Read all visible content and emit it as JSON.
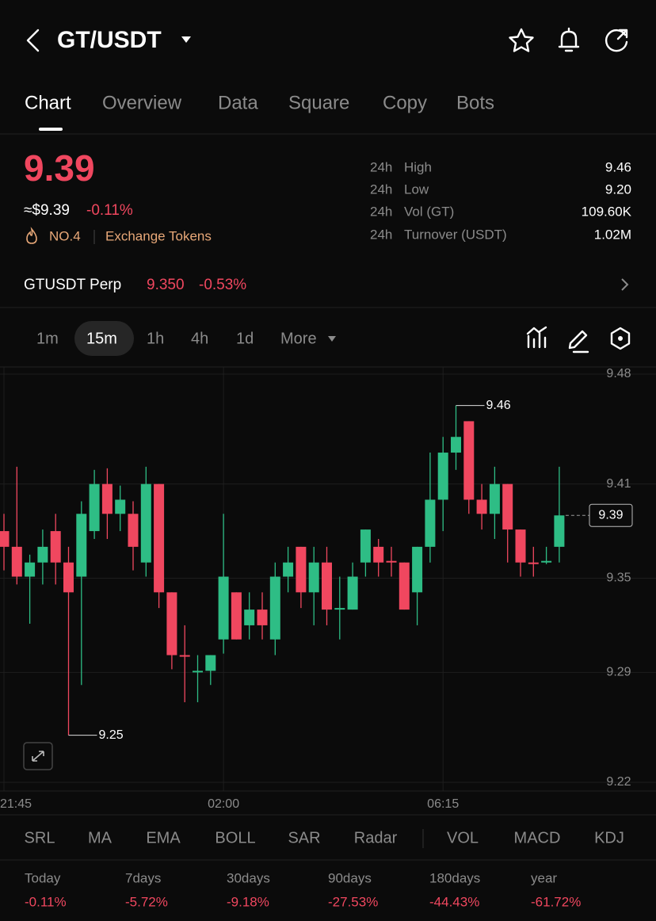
{
  "header": {
    "title": "GT/USDT"
  },
  "tabs": [
    "Chart",
    "Overview",
    "Data",
    "Square",
    "Copy",
    "Bots"
  ],
  "price": {
    "last": "9.39",
    "usd": "≈$9.39",
    "change": "-0.11%",
    "rank": "NO.4",
    "category": "Exchange Tokens"
  },
  "stats": [
    {
      "period": "24h",
      "label": "High",
      "value": "9.46"
    },
    {
      "period": "24h",
      "label": "Low",
      "value": "9.20"
    },
    {
      "period": "24h",
      "label": "Vol (GT)",
      "value": "109.60K"
    },
    {
      "period": "24h",
      "label": "Turnover (USDT)",
      "value": "1.02M"
    }
  ],
  "perp": {
    "name": "GTUSDT Perp",
    "price": "9.350",
    "change": "-0.53%"
  },
  "intervals": [
    "1m",
    "15m",
    "1h",
    "4h",
    "1d",
    "More"
  ],
  "chart_data": {
    "type": "candlestick",
    "categories": [
      "21:45",
      null,
      null,
      null,
      null,
      null,
      null,
      null,
      null,
      null,
      null,
      null,
      null,
      null,
      null,
      null,
      null,
      "02:00",
      null,
      null,
      null,
      null,
      null,
      null,
      null,
      null,
      null,
      null,
      null,
      null,
      null,
      null,
      null,
      null,
      "06:15",
      null,
      null,
      null,
      null,
      null,
      null,
      null,
      null,
      null
    ],
    "open": [
      9.38,
      9.37,
      9.351,
      9.36,
      9.38,
      9.36,
      9.351,
      9.38,
      9.41,
      9.391,
      9.391,
      9.36,
      9.41,
      9.341,
      9.301,
      9.29,
      9.291,
      9.311,
      9.341,
      9.32,
      9.33,
      9.311,
      9.351,
      9.37,
      9.341,
      9.36,
      9.33,
      9.33,
      9.36,
      9.37,
      9.361,
      9.36,
      9.341,
      9.37,
      9.4,
      9.43,
      9.45,
      9.4,
      9.391,
      9.41,
      9.381,
      9.36,
      9.36,
      9.37
    ],
    "high": [
      9.391,
      9.421,
      9.365,
      9.381,
      9.391,
      9.37,
      9.399,
      9.419,
      9.42,
      9.409,
      9.399,
      9.421,
      9.41,
      9.341,
      9.32,
      9.301,
      9.301,
      9.391,
      9.341,
      9.341,
      9.341,
      9.36,
      9.37,
      9.37,
      9.37,
      9.37,
      9.351,
      9.36,
      9.381,
      9.375,
      9.37,
      9.36,
      9.37,
      9.43,
      9.44,
      9.46,
      9.45,
      9.41,
      9.421,
      9.41,
      9.381,
      9.37,
      9.37,
      9.421
    ],
    "low": [
      9.355,
      9.346,
      9.321,
      9.346,
      9.346,
      9.25,
      9.282,
      9.375,
      9.375,
      9.38,
      9.355,
      9.351,
      9.331,
      9.292,
      9.271,
      9.271,
      9.282,
      9.302,
      9.311,
      9.311,
      9.311,
      9.301,
      9.341,
      9.331,
      9.32,
      9.32,
      9.311,
      9.33,
      9.351,
      9.351,
      9.351,
      9.33,
      9.32,
      9.36,
      9.38,
      9.419,
      9.391,
      9.381,
      9.375,
      9.36,
      9.351,
      9.351,
      9.359,
      9.36
    ],
    "close": [
      9.37,
      9.351,
      9.36,
      9.37,
      9.36,
      9.341,
      9.391,
      9.41,
      9.391,
      9.4,
      9.37,
      9.41,
      9.341,
      9.301,
      9.3,
      9.291,
      9.301,
      9.351,
      9.311,
      9.33,
      9.32,
      9.351,
      9.36,
      9.341,
      9.36,
      9.33,
      9.331,
      9.351,
      9.381,
      9.36,
      9.36,
      9.33,
      9.37,
      9.4,
      9.43,
      9.44,
      9.4,
      9.391,
      9.41,
      9.381,
      9.36,
      9.359,
      9.361,
      9.39
    ],
    "up_color": "#2ebd85",
    "down_color": "#f0475f",
    "ylim": [
      9.22,
      9.48
    ],
    "yticks": [
      9.48,
      9.41,
      9.35,
      9.29,
      9.22
    ],
    "grid": true
  },
  "indicators": [
    "SRL",
    "MA",
    "EMA",
    "BOLL",
    "SAR",
    "Radar",
    "VOL",
    "MACD",
    "KDJ"
  ],
  "performance": [
    {
      "period": "Today",
      "change": "-0.11%"
    },
    {
      "period": "7days",
      "change": "-5.72%"
    },
    {
      "period": "30days",
      "change": "-9.18%"
    },
    {
      "period": "90days",
      "change": "-27.53%"
    },
    {
      "period": "180days",
      "change": "-44.43%"
    },
    {
      "period": "year",
      "change": "-61.72%"
    }
  ]
}
